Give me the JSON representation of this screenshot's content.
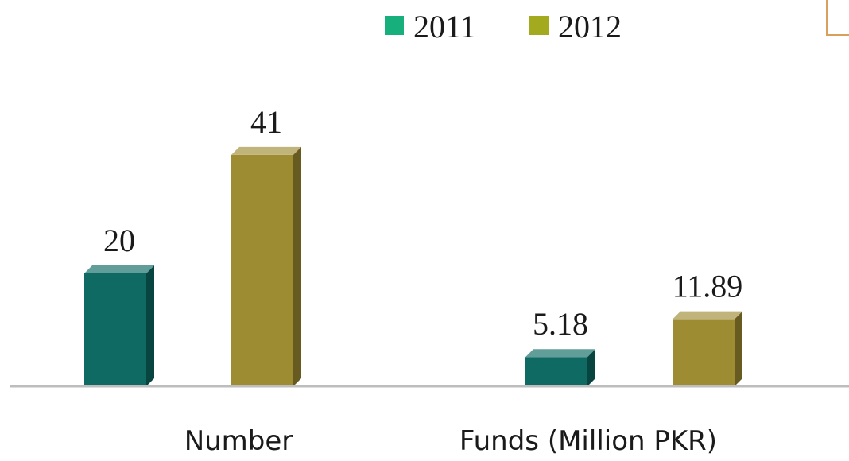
{
  "chart_data": {
    "type": "bar",
    "categories": [
      "Number",
      "Funds (Million PKR)"
    ],
    "series": [
      {
        "name": "2011",
        "values": [
          20,
          5.18
        ],
        "labels": [
          "20",
          "5.18"
        ],
        "color": "#0e6a62",
        "legend_color": "#17b07c"
      },
      {
        "name": "2012",
        "values": [
          41,
          11.89
        ],
        "labels": [
          "41",
          "11.89"
        ],
        "color": "#9e8c33",
        "legend_color": "#a3aa1e"
      }
    ],
    "legend_position": "top-center",
    "grid": false
  }
}
